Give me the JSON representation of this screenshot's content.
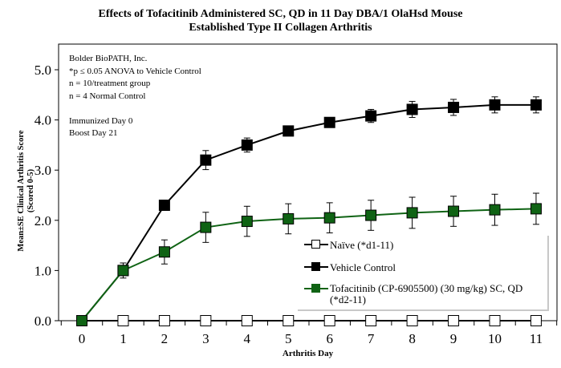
{
  "chart_data": {
    "type": "line",
    "title": [
      "Effects of Tofacitinib Administered SC, QD in 11 Day DBA/1 OlaHsd Mouse",
      "Established Type II Collagen Arthritis"
    ],
    "xlabel": "Arthritis Day",
    "ylabel": [
      "Mean±SE Clinical Arthritis Score",
      "(Scored 0-5)"
    ],
    "x": [
      0,
      1,
      2,
      3,
      4,
      5,
      6,
      7,
      8,
      9,
      10,
      11
    ],
    "xlim": [
      -0.55,
      11.5
    ],
    "ylim": [
      0,
      5.5
    ],
    "yticks": [
      "0.0",
      "1.0",
      "2.0",
      "3.0",
      "4.0",
      "5.0"
    ],
    "xticks": [
      "0",
      "1",
      "2",
      "3",
      "4",
      "5",
      "6",
      "7",
      "8",
      "9",
      "10",
      "11"
    ],
    "annotations": [
      "Bolder BioPATH, Inc.",
      "*p ≤ 0.05 ANOVA to Vehicle Control",
      "n = 10/treatment group",
      "n = 4 Normal Control",
      "",
      "Immunized Day 0",
      "Boost Day 21"
    ],
    "legend_position": "bottom-right",
    "series": [
      {
        "name": "Naïve (*d1-11)",
        "color": "#000000",
        "fill": "#ffffff",
        "values": [
          0,
          0,
          0,
          0,
          0,
          0,
          0,
          0,
          0,
          0,
          0,
          0
        ],
        "se": [
          0,
          0,
          0,
          0,
          0,
          0,
          0,
          0,
          0,
          0,
          0,
          0
        ]
      },
      {
        "name": "Vehicle Control",
        "color": "#000000",
        "fill": "#000000",
        "values": [
          0,
          1.0,
          2.3,
          3.2,
          3.5,
          3.78,
          3.95,
          4.08,
          4.21,
          4.25,
          4.3,
          4.3
        ],
        "se": [
          0,
          0.1,
          0.1,
          0.19,
          0.14,
          0.05,
          0.08,
          0.13,
          0.16,
          0.16,
          0.16,
          0.16
        ]
      },
      {
        "name": "Tofacitinib (CP-6905500) (30 mg/kg) SC, QD",
        "name2": "(*d2-11)",
        "color": "#0f6314",
        "fill": "#0f6314",
        "values": [
          0,
          1.0,
          1.37,
          1.86,
          1.98,
          2.03,
          2.05,
          2.1,
          2.15,
          2.18,
          2.21,
          2.23
        ],
        "se": [
          0,
          0.15,
          0.24,
          0.3,
          0.3,
          0.3,
          0.3,
          0.3,
          0.31,
          0.3,
          0.31,
          0.31
        ]
      }
    ]
  }
}
